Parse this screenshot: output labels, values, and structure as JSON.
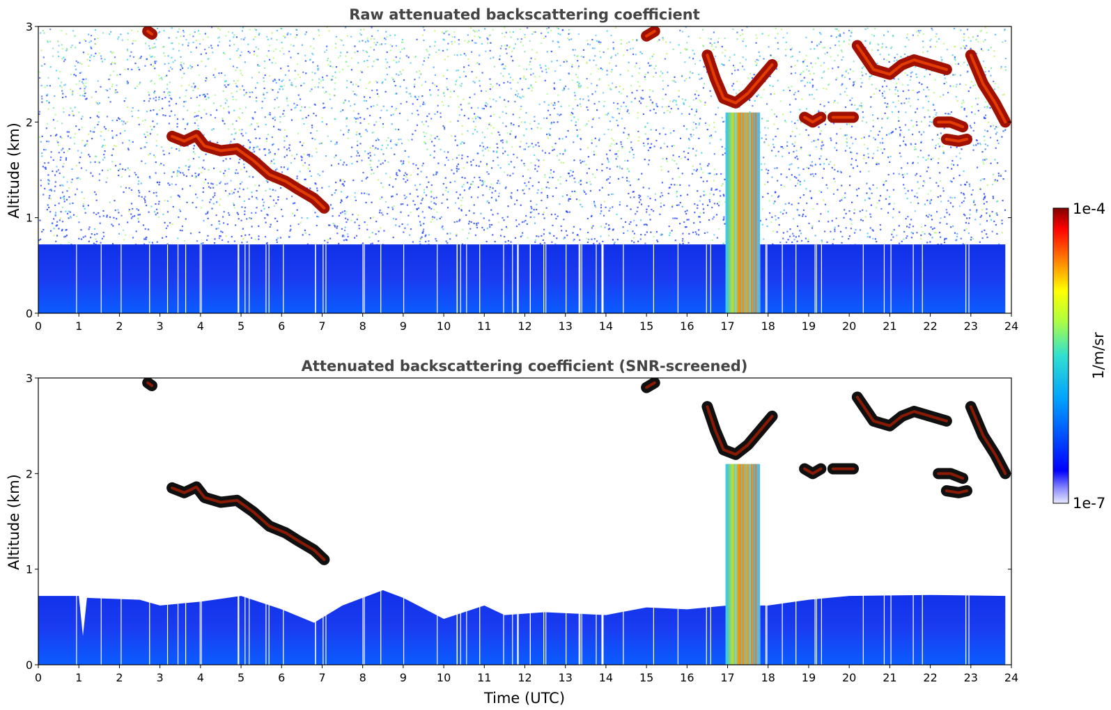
{
  "chart_data": [
    {
      "type": "heatmap",
      "title": "Raw attenuated backscattering coefficient",
      "xlabel": "",
      "ylabel": "Altitude (km)",
      "xlim": [
        0,
        24
      ],
      "ylim": [
        0,
        3
      ],
      "x_ticks": [
        "0",
        "1",
        "2",
        "3",
        "4",
        "5",
        "6",
        "7",
        "8",
        "9",
        "10",
        "11",
        "12",
        "13",
        "14",
        "15",
        "16",
        "17",
        "18",
        "19",
        "20",
        "21",
        "22",
        "23",
        "24"
      ],
      "y_ticks": [
        "0",
        "1",
        "2",
        "3"
      ],
      "boundary_layer_top_km": 0.72,
      "features": [
        {
          "kind": "cloud",
          "points": [
            [
              3.3,
              1.85
            ],
            [
              3.6,
              1.8
            ],
            [
              3.9,
              1.86
            ],
            [
              4.1,
              1.75
            ],
            [
              4.5,
              1.7
            ],
            [
              4.9,
              1.72
            ],
            [
              5.3,
              1.6
            ],
            [
              5.7,
              1.45
            ],
            [
              6.1,
              1.38
            ],
            [
              6.4,
              1.3
            ],
            [
              6.8,
              1.2
            ],
            [
              7.05,
              1.1
            ]
          ]
        },
        {
          "kind": "cloud",
          "points": [
            [
              16.5,
              2.7
            ],
            [
              16.7,
              2.45
            ],
            [
              16.9,
              2.25
            ],
            [
              17.2,
              2.2
            ],
            [
              17.5,
              2.3
            ],
            [
              17.8,
              2.45
            ],
            [
              18.1,
              2.6
            ]
          ]
        },
        {
          "kind": "cloud",
          "points": [
            [
              18.9,
              2.05
            ],
            [
              19.1,
              2.0
            ],
            [
              19.3,
              2.05
            ]
          ]
        },
        {
          "kind": "cloud",
          "points": [
            [
              19.6,
              2.05
            ],
            [
              19.9,
              2.05
            ],
            [
              20.1,
              2.05
            ]
          ]
        },
        {
          "kind": "cloud",
          "points": [
            [
              20.2,
              2.8
            ],
            [
              20.6,
              2.55
            ],
            [
              21.0,
              2.5
            ],
            [
              21.3,
              2.6
            ],
            [
              21.6,
              2.65
            ],
            [
              22.0,
              2.6
            ],
            [
              22.4,
              2.55
            ]
          ]
        },
        {
          "kind": "cloud",
          "points": [
            [
              22.2,
              2.0
            ],
            [
              22.5,
              2.0
            ],
            [
              22.8,
              1.95
            ]
          ]
        },
        {
          "kind": "cloud",
          "points": [
            [
              22.4,
              1.82
            ],
            [
              22.7,
              1.8
            ],
            [
              22.9,
              1.82
            ]
          ]
        },
        {
          "kind": "cloud",
          "points": [
            [
              23.0,
              2.7
            ],
            [
              23.3,
              2.4
            ],
            [
              23.6,
              2.2
            ],
            [
              23.85,
              2.0
            ]
          ]
        },
        {
          "kind": "cloud",
          "points": [
            [
              2.7,
              2.95
            ],
            [
              2.8,
              2.92
            ]
          ]
        },
        {
          "kind": "cloud",
          "points": [
            [
              15.0,
              2.9
            ],
            [
              15.2,
              2.95
            ]
          ]
        },
        {
          "kind": "plume",
          "x_start": 16.95,
          "x_end": 17.8,
          "y_top": 2.1
        }
      ]
    },
    {
      "type": "heatmap",
      "title": "Attenuated backscattering coefficient (SNR-screened)",
      "xlabel": "Time (UTC)",
      "ylabel": "Altitude (km)",
      "xlim": [
        0,
        24
      ],
      "ylim": [
        0,
        3
      ],
      "x_ticks": [
        "0",
        "1",
        "2",
        "3",
        "4",
        "5",
        "6",
        "7",
        "8",
        "9",
        "10",
        "11",
        "12",
        "13",
        "14",
        "15",
        "16",
        "17",
        "18",
        "19",
        "20",
        "21",
        "22",
        "23",
        "24"
      ],
      "y_ticks": [
        "0",
        "1",
        "2",
        "3"
      ],
      "boundary_layer_top_km": [
        [
          0,
          0.72
        ],
        [
          1,
          0.72
        ],
        [
          1.1,
          0.3
        ],
        [
          1.2,
          0.7
        ],
        [
          2.5,
          0.68
        ],
        [
          3,
          0.62
        ],
        [
          4,
          0.66
        ],
        [
          5,
          0.72
        ],
        [
          6,
          0.58
        ],
        [
          6.8,
          0.44
        ],
        [
          7.5,
          0.62
        ],
        [
          8.5,
          0.78
        ],
        [
          9,
          0.7
        ],
        [
          10,
          0.48
        ],
        [
          11,
          0.62
        ],
        [
          11.5,
          0.52
        ],
        [
          12.5,
          0.55
        ],
        [
          14,
          0.52
        ],
        [
          15,
          0.6
        ],
        [
          16,
          0.58
        ],
        [
          17,
          0.62
        ],
        [
          18,
          0.62
        ],
        [
          19,
          0.68
        ],
        [
          20,
          0.72
        ],
        [
          22,
          0.73
        ],
        [
          23.85,
          0.72
        ]
      ]
    }
  ],
  "colorbar": {
    "label": "1/m/sr",
    "max_label": "1e-4",
    "min_label": "1e-7",
    "colormap": "jet"
  }
}
